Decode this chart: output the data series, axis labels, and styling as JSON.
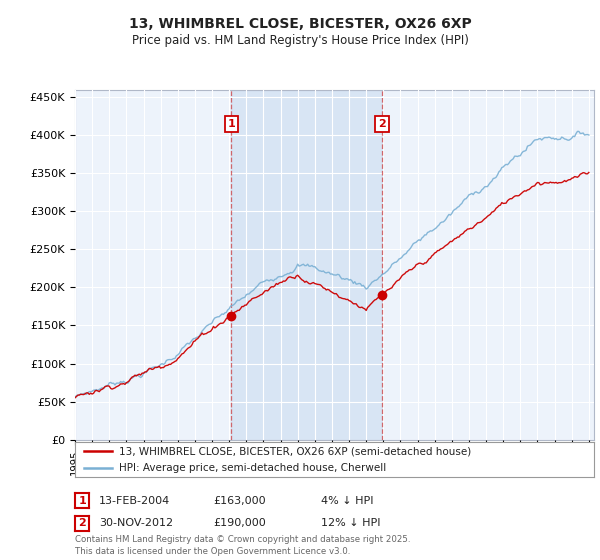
{
  "title_line1": "13, WHIMBREL CLOSE, BICESTER, OX26 6XP",
  "title_line2": "Price paid vs. HM Land Registry's House Price Index (HPI)",
  "ylim": [
    0,
    460000
  ],
  "yticks": [
    0,
    50000,
    100000,
    150000,
    200000,
    250000,
    300000,
    350000,
    400000,
    450000
  ],
  "ytick_labels": [
    "£0",
    "£50K",
    "£100K",
    "£150K",
    "£200K",
    "£250K",
    "£300K",
    "£350K",
    "£400K",
    "£450K"
  ],
  "background_color": "#ffffff",
  "plot_bg_color": "#dce8f5",
  "plot_bg_color2": "#edf3fb",
  "shade_color": "#c8daf0",
  "grid_color": "#ffffff",
  "transaction1_year": 2004.12,
  "transaction1_price": 163000,
  "transaction2_year": 2012.92,
  "transaction2_price": 190000,
  "legend_line1": "13, WHIMBREL CLOSE, BICESTER, OX26 6XP (semi-detached house)",
  "legend_line2": "HPI: Average price, semi-detached house, Cherwell",
  "annot1_date": "13-FEB-2004",
  "annot1_price": "£163,000",
  "annot1_hpi": "4% ↓ HPI",
  "annot2_date": "30-NOV-2012",
  "annot2_price": "£190,000",
  "annot2_hpi": "12% ↓ HPI",
  "footer": "Contains HM Land Registry data © Crown copyright and database right 2025.\nThis data is licensed under the Open Government Licence v3.0.",
  "red_color": "#cc0000",
  "blue_color": "#7ab0d4",
  "start_year": 1995,
  "end_year": 2025
}
